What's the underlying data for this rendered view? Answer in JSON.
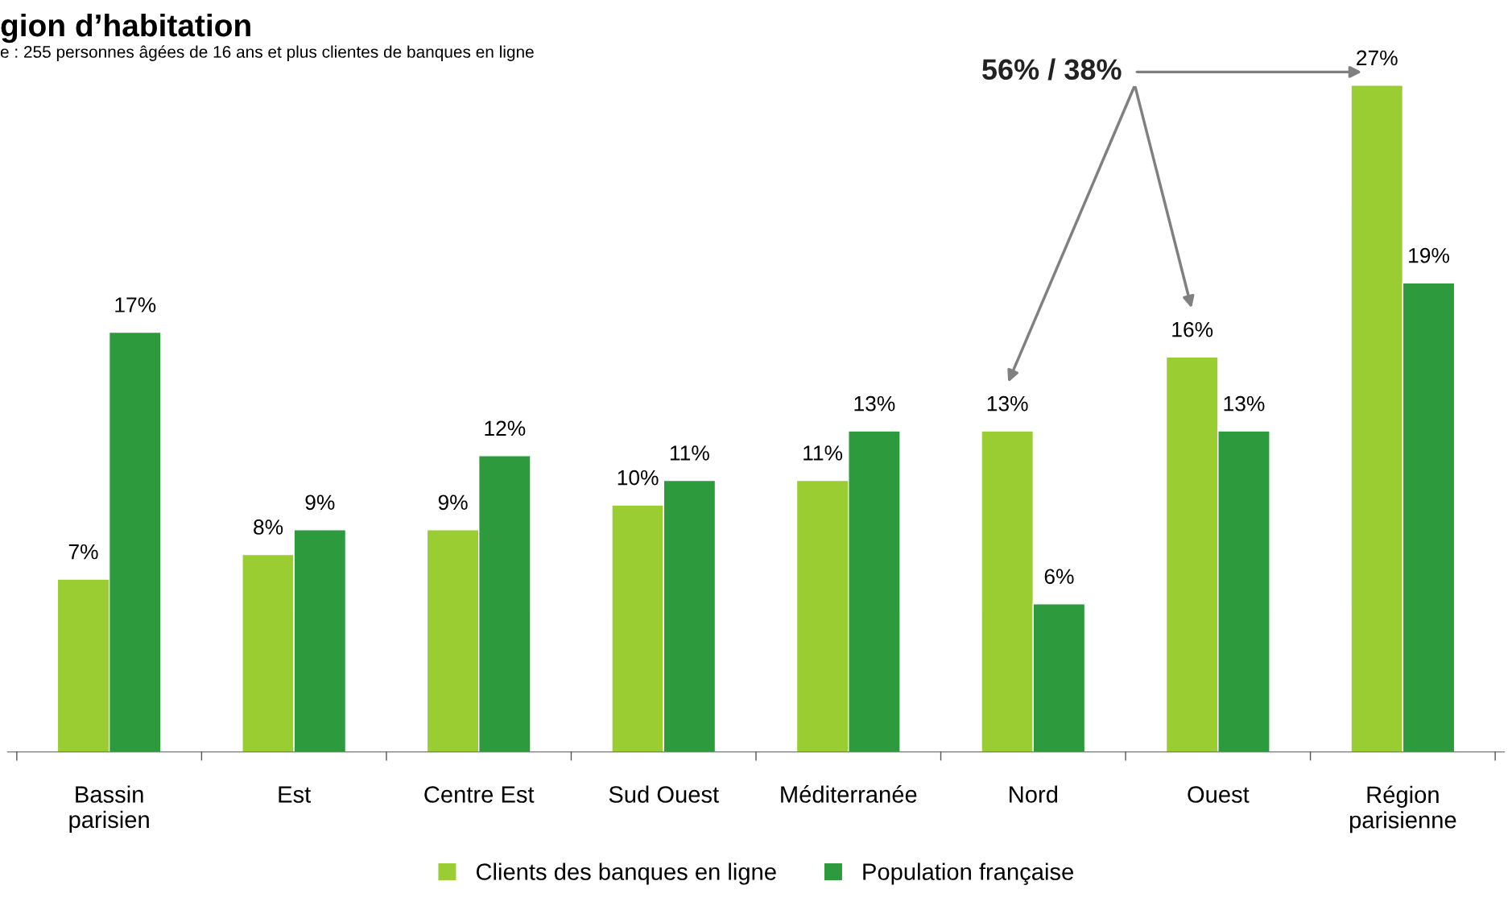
{
  "chart_data": {
    "type": "bar",
    "title": "gion d’habitation",
    "subtitle": "e : 255 personnes âgées de 16 ans et plus clientes de banques en ligne",
    "categories": [
      "Bassin\nparisien",
      "Est",
      "Centre Est",
      "Sud Ouest",
      "Méditerranée",
      "Nord",
      "Ouest",
      "Région\nparisienne"
    ],
    "series": [
      {
        "name": "Clients des banques en ligne",
        "color": "#9acd32",
        "values": [
          7,
          8,
          9,
          10,
          11,
          13,
          16,
          27
        ],
        "value_labels": [
          "7%",
          "8%",
          "9%",
          "10%",
          "11%",
          "13%",
          "16%",
          "27%"
        ]
      },
      {
        "name": "Population française",
        "color": "#2e9a3e",
        "values": [
          17,
          9,
          12,
          11,
          13,
          6,
          13,
          19
        ],
        "value_labels": [
          "17%",
          "9%",
          "12%",
          "11%",
          "13%",
          "6%",
          "13%",
          "19%"
        ]
      }
    ],
    "annotations": [
      "56% / 38%"
    ],
    "legend": "bottom",
    "grid": false
  }
}
